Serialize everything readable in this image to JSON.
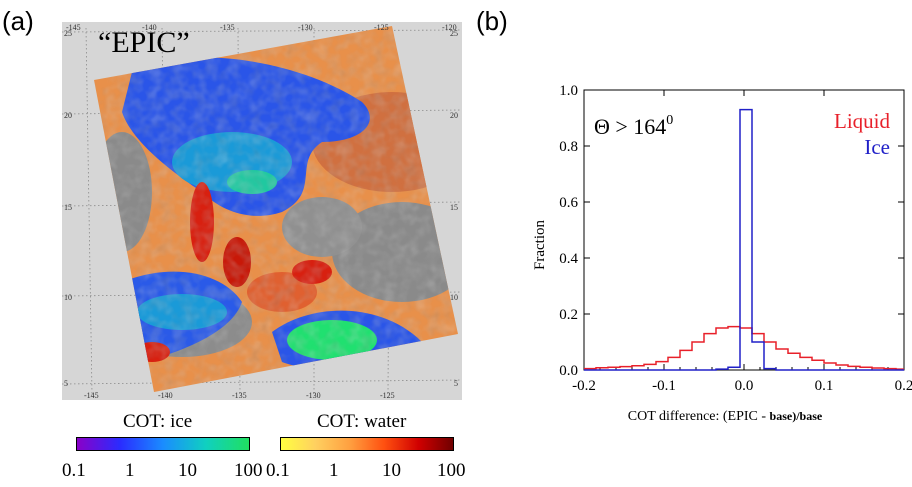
{
  "panel_a": {
    "label": "(a)",
    "map_title": "“EPIC”",
    "lon_ticks_top": [
      "-145",
      "-140",
      "-135",
      "-130",
      "-125",
      "-120"
    ],
    "lon_ticks_bottom": [
      "-145",
      "-140",
      "-135",
      "-130",
      "-125"
    ],
    "lat_ticks_left": [
      "25",
      "20",
      "15",
      "10",
      "5"
    ],
    "lat_ticks_right": [
      "25",
      "20",
      "15",
      "10",
      "5"
    ],
    "colorbar_ice": {
      "title": "COT: ice",
      "ticks": [
        "0.1",
        "1",
        "10",
        "100"
      ],
      "colors": [
        "#8a00c8",
        "#2a2cff",
        "#1a8cff",
        "#10d0c0",
        "#20e060"
      ]
    },
    "colorbar_water": {
      "title": "COT: water",
      "ticks": [
        "0.1",
        "1",
        "10",
        "100"
      ],
      "colors": [
        "#ffff40",
        "#ffd060",
        "#ffa040",
        "#ff5010",
        "#d00000",
        "#700000"
      ]
    }
  },
  "panel_b": {
    "label": "(b)",
    "annotation_angle": "Θ > 164",
    "annotation_sup": "0",
    "legend": [
      {
        "label": "Liquid",
        "color": "#e8202a"
      },
      {
        "label": "Ice",
        "color": "#2020c8"
      }
    ]
  },
  "chart_data": {
    "type": "histogram",
    "xlabel_main": "COT difference: (EPIC - ",
    "xlabel_bold": "base)/base",
    "ylabel": "Fraction",
    "xlim": [
      -0.2,
      0.2
    ],
    "ylim": [
      0.0,
      1.0
    ],
    "x_ticks": [
      "-0.2",
      "-0.1",
      "0.0",
      "0.1",
      "0.2"
    ],
    "y_ticks": [
      "0.0",
      "0.2",
      "0.4",
      "0.6",
      "0.8",
      "1.0"
    ],
    "bin_edges": [
      -0.2,
      -0.185,
      -0.17,
      -0.155,
      -0.14,
      -0.125,
      -0.11,
      -0.095,
      -0.08,
      -0.065,
      -0.05,
      -0.035,
      -0.02,
      -0.005,
      0.01,
      0.025,
      0.04,
      0.055,
      0.07,
      0.085,
      0.1,
      0.115,
      0.13,
      0.145,
      0.16,
      0.175,
      0.19,
      0.205
    ],
    "series": [
      {
        "name": "Liquid",
        "color": "#e8202a",
        "values": [
          0.005,
          0.008,
          0.01,
          0.012,
          0.015,
          0.02,
          0.03,
          0.045,
          0.07,
          0.1,
          0.13,
          0.15,
          0.155,
          0.15,
          0.13,
          0.1,
          0.075,
          0.06,
          0.045,
          0.035,
          0.025,
          0.018,
          0.013,
          0.01,
          0.007,
          0.005,
          0.003
        ]
      },
      {
        "name": "Ice",
        "color": "#2020c8",
        "values": [
          0.0,
          0.0,
          0.0,
          0.0,
          0.0,
          0.0,
          0.0,
          0.0,
          0.0,
          0.0,
          0.0,
          0.003,
          0.01,
          0.93,
          0.1,
          0.005,
          0.0,
          0.0,
          0.0,
          0.0,
          0.0,
          0.0,
          0.0,
          0.0,
          0.0,
          0.0,
          0.0
        ]
      }
    ]
  }
}
